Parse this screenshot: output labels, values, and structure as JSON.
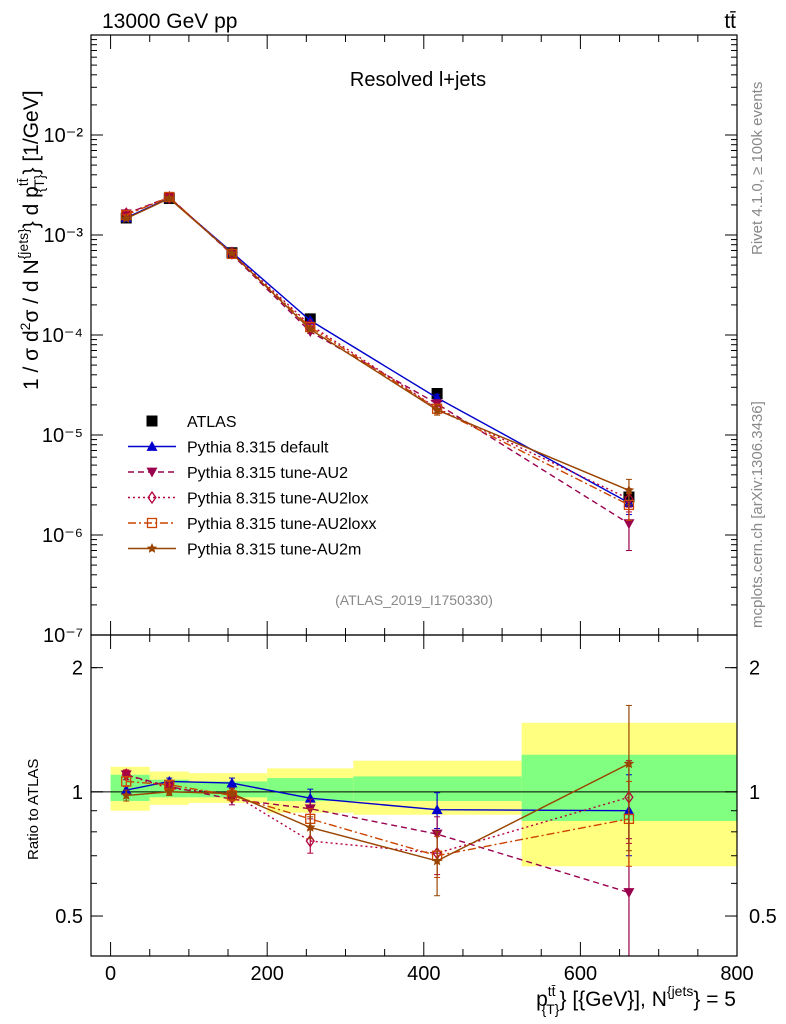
{
  "header": {
    "left": "13000 GeV pp",
    "right": "tt̄"
  },
  "side": {
    "rivet": "Rivet 4.1.0, ≥ 100k events",
    "mcplots": "mcplots.cern.ch [arXiv:1306.3436]"
  },
  "colors": {
    "data": "#000000",
    "default": "#0000cc",
    "au2": "#99004d",
    "au2lox": "#b3003b",
    "au2loxx": "#cc4400",
    "au2m": "#994400",
    "band_yellow": "#ffff80",
    "band_green": "#80ff80"
  },
  "chart_data": [
    {
      "type": "scatter",
      "title": "Resolved l+jets",
      "analysis_tag": "(ATLAS_2019_I1750330)",
      "ylabel": "1 / σ d²σ / d N^{jets} d p_T^{tt̄} [1/GeV]",
      "yscale": "log",
      "ylim": [
        1e-07,
        0.1
      ],
      "xlim": [
        -25,
        800
      ],
      "yticks": [
        {
          "v": 1e-07,
          "label": "10⁻⁷"
        },
        {
          "v": 1e-06,
          "label": "10⁻⁶"
        },
        {
          "v": 1e-05,
          "label": "10⁻⁵"
        },
        {
          "v": 0.0001,
          "label": "10⁻⁴"
        },
        {
          "v": 0.001,
          "label": "10⁻³"
        },
        {
          "v": 0.01,
          "label": "10⁻²"
        }
      ],
      "x": [
        20,
        75,
        155,
        255,
        417,
        662
      ],
      "series": [
        {
          "name": "ATLAS",
          "key": "data",
          "marker": "square",
          "line": "none",
          "values": [
            0.00148,
            0.00232,
            0.000665,
            0.000145,
            2.6e-05,
            2.4e-06
          ],
          "errors": [
            5e-05,
            6e-05,
            2e-05,
            5e-06,
            1.2e-06,
            2e-07
          ]
        },
        {
          "name": "Pythia 8.315 default",
          "key": "default",
          "marker": "triangle-up",
          "line": "solid",
          "values": [
            0.00149,
            0.00234,
            0.000672,
            0.00014,
            2.35e-05,
            2.1e-06
          ],
          "errors": [
            2e-05,
            3e-05,
            1e-05,
            4e-06,
            2e-06,
            5e-07
          ]
        },
        {
          "name": "Pythia 8.315 tune-AU2",
          "key": "au2",
          "marker": "triangle-down",
          "line": "dashed",
          "values": [
            0.00163,
            0.0024,
            0.00064,
            0.000108,
            2.05e-05,
            1.3e-06
          ],
          "errors": [
            2e-05,
            3e-05,
            1e-05,
            4e-06,
            2e-06,
            6e-07
          ]
        },
        {
          "name": "Pythia 8.315 tune-AU2lox",
          "key": "au2lox",
          "marker": "diamond",
          "line": "dotted",
          "values": [
            0.00163,
            0.00237,
            0.00066,
            0.000126,
            1.85e-05,
            2.3e-06
          ],
          "errors": [
            2e-05,
            3e-05,
            1e-05,
            4e-06,
            2e-06,
            6e-07
          ]
        },
        {
          "name": "Pythia 8.315 tune-AU2loxx",
          "key": "au2loxx",
          "marker": "square-open",
          "line": "dashdot",
          "values": [
            0.00158,
            0.0024,
            0.000648,
            0.00012,
            1.83e-05,
            2e-06
          ],
          "errors": [
            2e-05,
            3e-05,
            1e-05,
            4e-06,
            2e-06,
            6e-07
          ]
        },
        {
          "name": "Pythia 8.315 tune-AU2m",
          "key": "au2m",
          "marker": "star",
          "line": "solid",
          "values": [
            0.00146,
            0.00232,
            0.000655,
            0.000114,
            1.78e-05,
            2.8e-06
          ],
          "errors": [
            2e-05,
            3e-05,
            1e-05,
            4e-06,
            2e-06,
            8e-07
          ]
        }
      ]
    },
    {
      "type": "scatter",
      "title": "",
      "ylabel": "Ratio to ATLAS",
      "xlabel": "p_T^{tt̄} [GeV], N^{jets} = 5",
      "yscale": "log",
      "ylim": [
        0.4,
        2.4
      ],
      "xlim": [
        -25,
        800
      ],
      "yticks": [
        {
          "v": 0.5,
          "label": "0.5"
        },
        {
          "v": 1,
          "label": "1"
        },
        {
          "v": 2,
          "label": "2"
        }
      ],
      "xticks": [
        {
          "v": 0,
          "label": "0"
        },
        {
          "v": 200,
          "label": "200"
        },
        {
          "v": 400,
          "label": "400"
        },
        {
          "v": 600,
          "label": "600"
        },
        {
          "v": 800,
          "label": "800"
        }
      ],
      "bins": [
        {
          "lo": 0,
          "hi": 50,
          "yel": [
            0.9,
            1.15
          ],
          "grn": [
            0.95,
            1.1
          ]
        },
        {
          "lo": 50,
          "hi": 100,
          "yel": [
            0.93,
            1.12
          ],
          "grn": [
            0.97,
            1.07
          ]
        },
        {
          "lo": 100,
          "hi": 200,
          "yel": [
            0.94,
            1.11
          ],
          "grn": [
            0.97,
            1.06
          ]
        },
        {
          "lo": 200,
          "hi": 310,
          "yel": [
            0.89,
            1.14
          ],
          "grn": [
            0.95,
            1.08
          ]
        },
        {
          "lo": 310,
          "hi": 525,
          "yel": [
            0.88,
            1.19
          ],
          "grn": [
            0.95,
            1.09
          ]
        },
        {
          "lo": 525,
          "hi": 800,
          "yel": [
            0.66,
            1.47
          ],
          "grn": [
            0.85,
            1.23
          ]
        }
      ],
      "x": [
        20,
        75,
        155,
        255,
        417,
        662
      ],
      "series": [
        {
          "name": "Pythia 8.315 default",
          "key": "default",
          "marker": "triangle-up",
          "line": "solid",
          "values": [
            1.01,
            1.06,
            1.05,
            0.965,
            0.905,
            0.9
          ],
          "errors": [
            0.02,
            0.02,
            0.03,
            0.05,
            0.09,
            0.2
          ]
        },
        {
          "name": "Pythia 8.315 tune-AU2",
          "key": "au2",
          "marker": "triangle-down",
          "line": "dashed",
          "values": [
            1.1,
            1.03,
            0.96,
            0.91,
            0.79,
            0.57
          ],
          "errors": [
            0.03,
            0.02,
            0.03,
            0.05,
            0.08,
            0.2
          ]
        },
        {
          "name": "Pythia 8.315 tune-AU2lox",
          "key": "au2lox",
          "marker": "diamond",
          "line": "dotted",
          "values": [
            1.1,
            1.02,
            0.99,
            0.76,
            0.71,
            0.97
          ],
          "errors": [
            0.03,
            0.02,
            0.03,
            0.05,
            0.08,
            0.22
          ]
        },
        {
          "name": "Pythia 8.315 tune-AU2loxx",
          "key": "au2loxx",
          "marker": "square-open",
          "line": "dashdot",
          "values": [
            1.06,
            1.04,
            0.98,
            0.86,
            0.7,
            0.86
          ],
          "errors": [
            0.03,
            0.02,
            0.03,
            0.05,
            0.08,
            0.2
          ]
        },
        {
          "name": "Pythia 8.315 tune-AU2m",
          "key": "au2m",
          "marker": "star",
          "line": "solid",
          "values": [
            0.98,
            1.0,
            0.99,
            0.82,
            0.68,
            1.17
          ],
          "errors": [
            0.03,
            0.02,
            0.03,
            0.05,
            0.12,
            0.45
          ]
        }
      ]
    }
  ]
}
